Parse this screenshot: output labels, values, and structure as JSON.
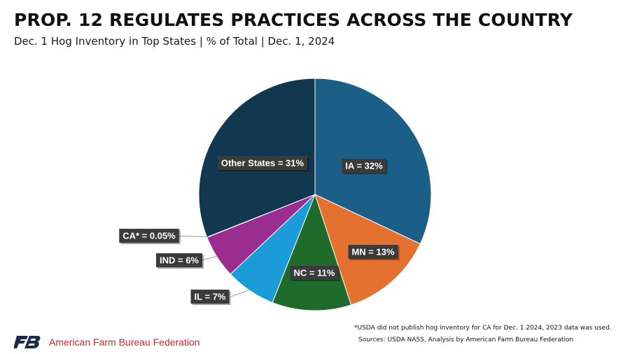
{
  "title": "PROP. 12 REGULATES PRACTICES ACROSS THE COUNTRY",
  "subtitle": "Dec. 1 Hog Inventory in Top States | % of Total | Dec. 1, 2024",
  "chart_data": {
    "type": "pie",
    "slices": [
      {
        "label": "IA = 32%",
        "value": 32,
        "color": "#1b5e87"
      },
      {
        "label": "MN = 13%",
        "value": 13,
        "color": "#e57130"
      },
      {
        "label": "NC = 11%",
        "value": 11,
        "color": "#1e6b2c"
      },
      {
        "label": "IL = 7%",
        "value": 7,
        "color": "#1b9cd8"
      },
      {
        "label": "IND = 6%",
        "value": 6,
        "color": "#9a2d8f"
      },
      {
        "label": "CA* = 0.05%",
        "value": 0.05,
        "color": "#c8c8c8"
      },
      {
        "label": "Other States = 31%",
        "value": 31,
        "color": "#11384f"
      }
    ],
    "start": "12 o'clock",
    "direction": "clockwise",
    "legend": "none"
  },
  "footnote": "*USDA did not publish hog inventory for CA for Dec. 1 2024, 2023 data was used.",
  "source": "Sources: USDA NASS, Analysis by American Farm Bureau Federation",
  "logo": {
    "name": "American Farm Bureau Federation",
    "mark": "FB",
    "color": "#d0262c"
  }
}
